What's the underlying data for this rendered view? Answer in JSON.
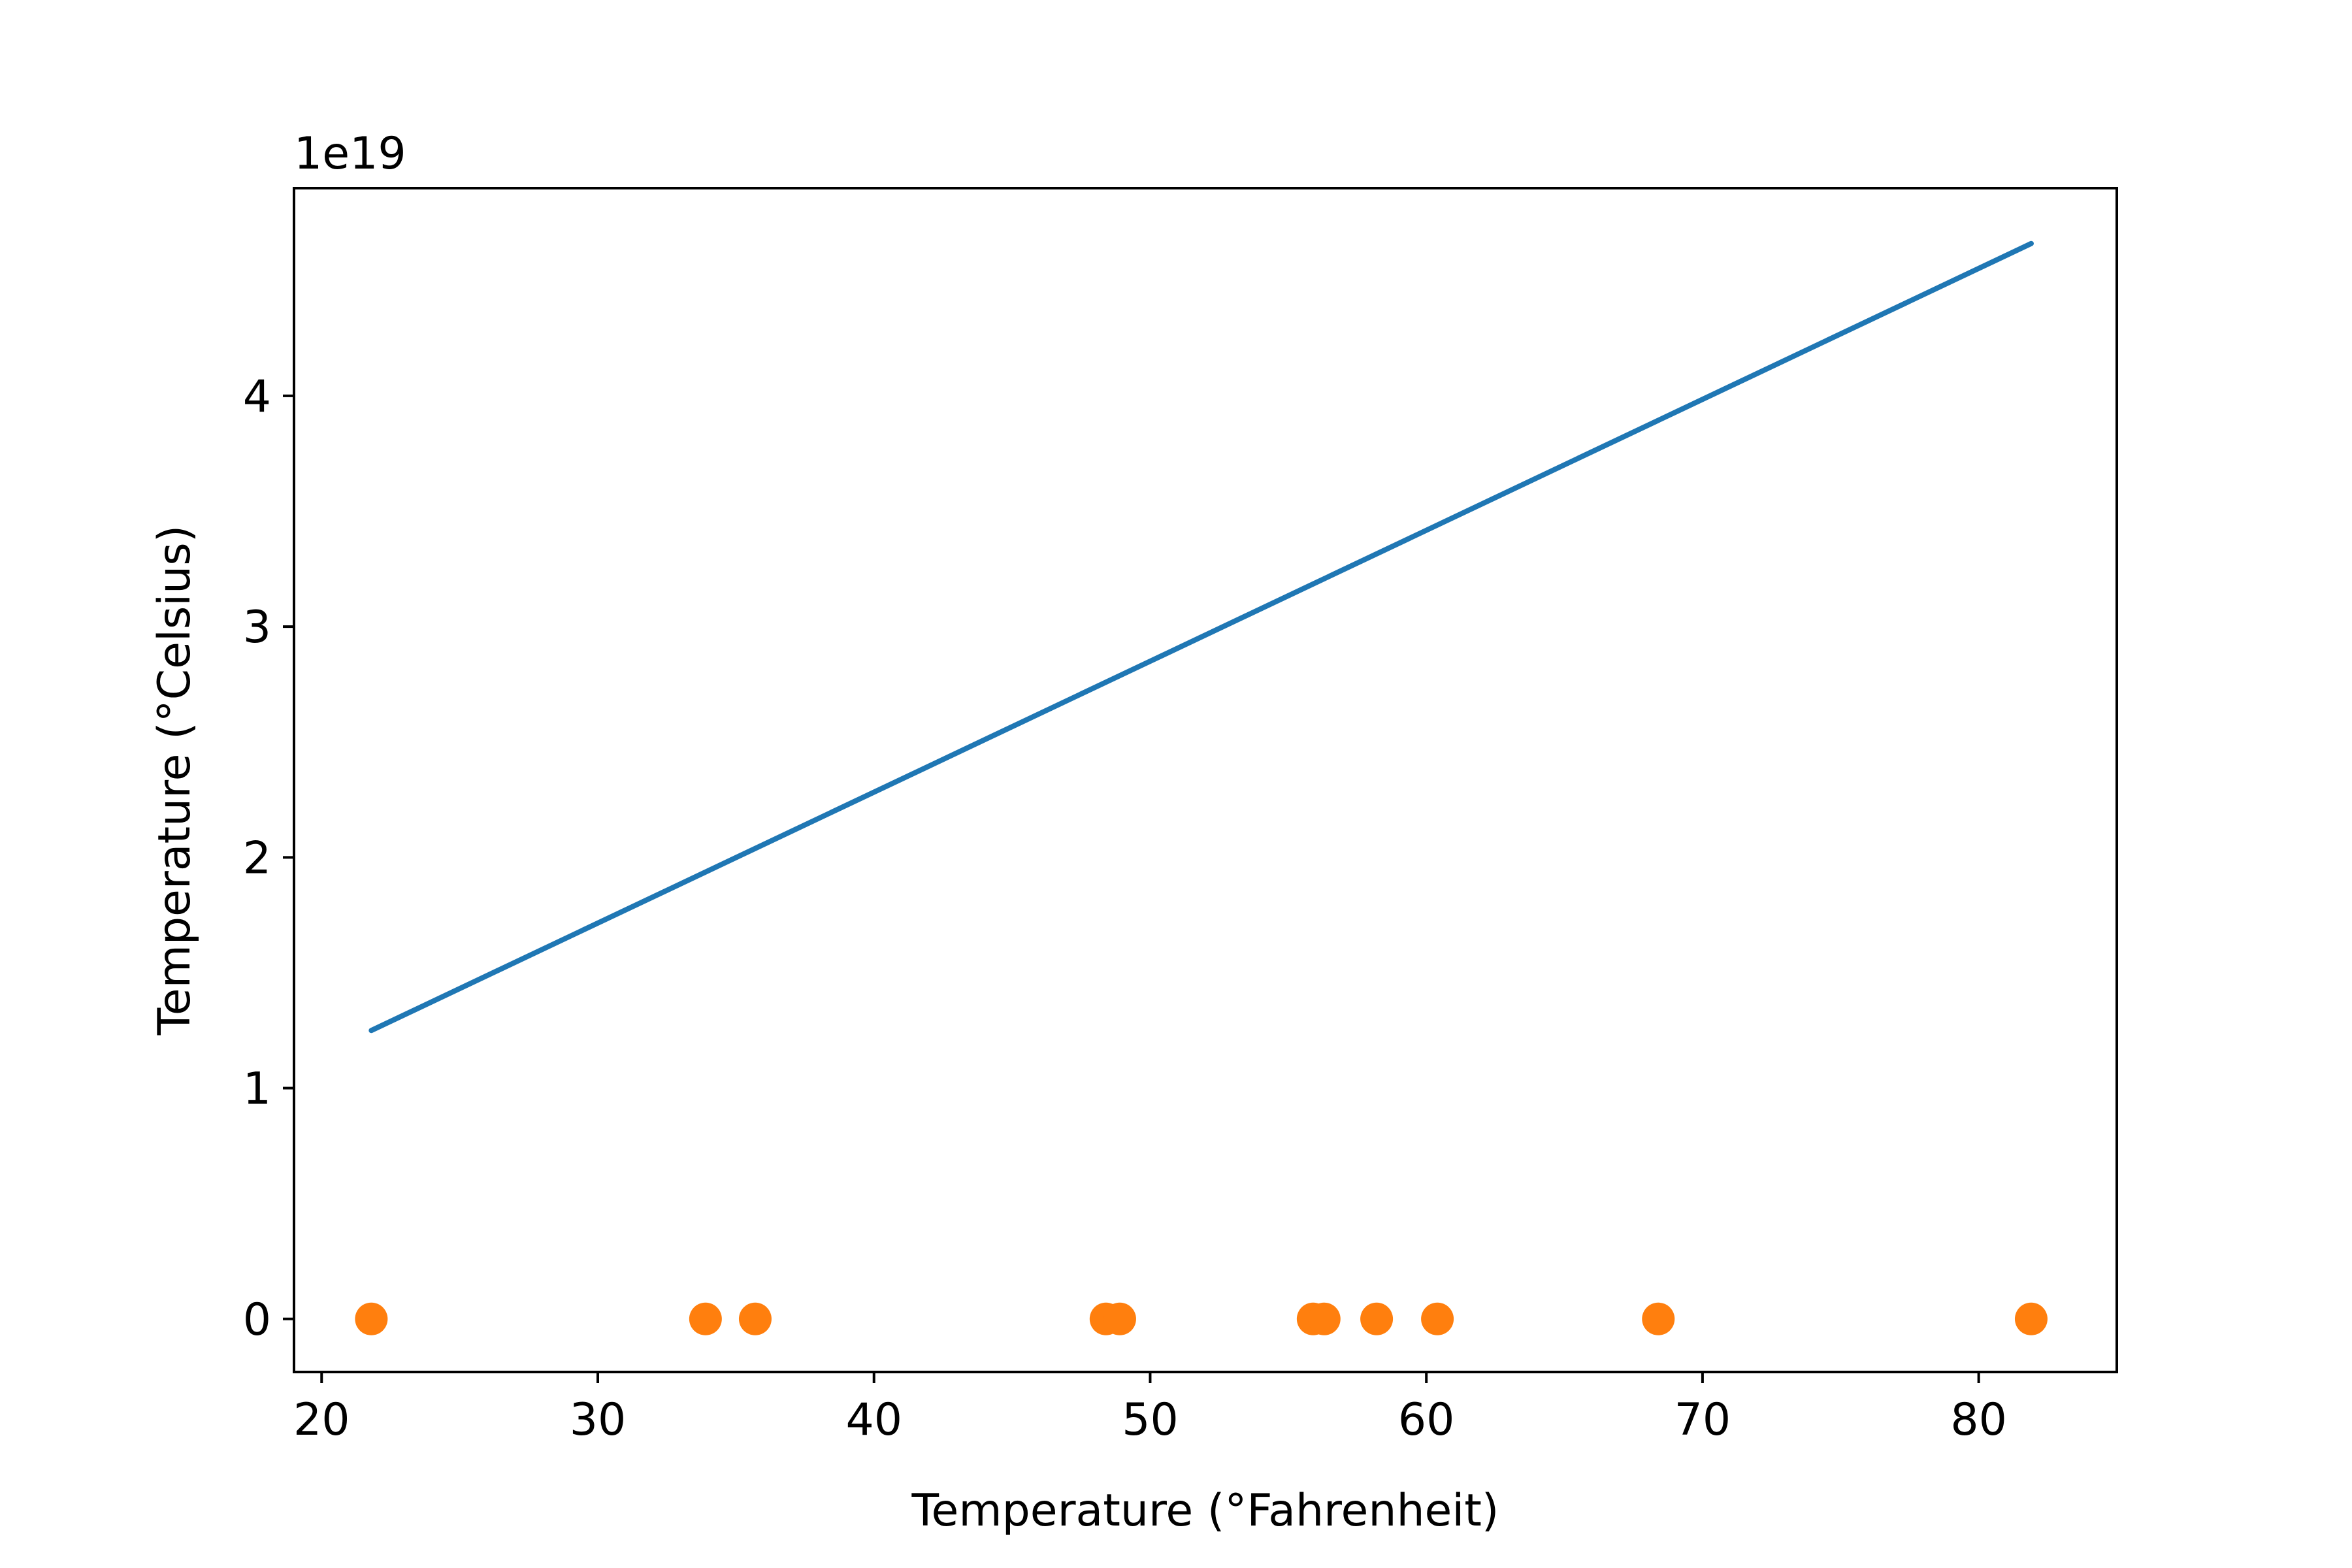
{
  "chart_data": {
    "type": "scatter",
    "xlabel": "Temperature (°Fahrenheit)",
    "ylabel": "Temperature (°Celsius)",
    "y_offset_label": "1e19",
    "xlim": [
      19,
      85
    ],
    "ylim": [
      -0.23,
      4.9
    ],
    "x_ticks": [
      20,
      30,
      40,
      50,
      60,
      70,
      80
    ],
    "x_tick_labels": [
      "20",
      "30",
      "40",
      "50",
      "60",
      "70",
      "80"
    ],
    "y_ticks": [
      0,
      1,
      2,
      3,
      4
    ],
    "y_tick_labels": [
      "0",
      "1",
      "2",
      "3",
      "4"
    ],
    "y_scale_factor": 1e+19,
    "grid": false,
    "legend": "none",
    "series": [
      {
        "kind": "line",
        "color": "#1f77b4",
        "x": [
          21.8,
          81.9
        ],
        "y": [
          1.25,
          4.66
        ]
      },
      {
        "kind": "scatter",
        "color": "#ff7f0e",
        "x": [
          21.8,
          33.9,
          35.7,
          48.4,
          48.9,
          55.9,
          56.3,
          58.2,
          60.4,
          68.4,
          81.9
        ],
        "y": [
          0,
          0,
          0,
          0,
          0,
          0,
          0,
          0,
          0,
          0,
          0
        ]
      }
    ]
  }
}
